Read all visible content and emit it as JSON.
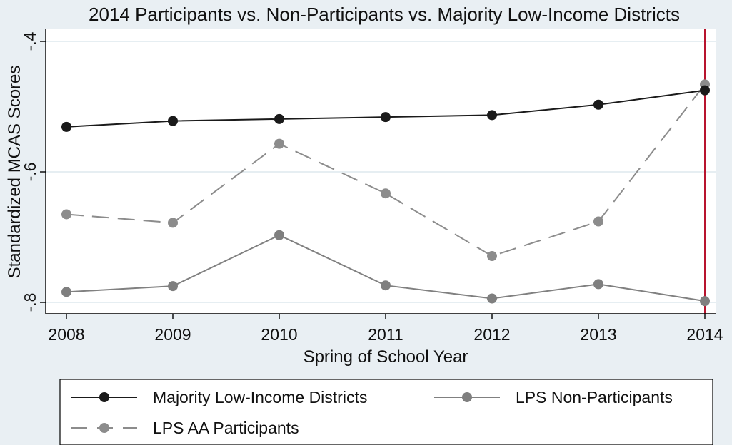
{
  "chart_data": {
    "type": "line",
    "title": "2014 Participants vs. Non-Participants vs. Majority Low-Income Districts",
    "xlabel": "Spring of School Year",
    "ylabel": "Standardized MCAS Scores",
    "x": [
      2008,
      2009,
      2010,
      2011,
      2012,
      2013,
      2014
    ],
    "x_tick_labels": [
      "2008",
      "2009",
      "2010",
      "2011",
      "2012",
      "2013",
      "2014"
    ],
    "ylim": [
      -0.8,
      -0.4
    ],
    "y_ticks": [
      -0.8,
      -0.6,
      -0.4
    ],
    "y_tick_labels": [
      "-.8",
      "-.6",
      "-.4"
    ],
    "grid": true,
    "vertical_marker": {
      "x": 2014,
      "color": "#b8142e"
    },
    "series": [
      {
        "name": "Majority Low-Income Districts",
        "values": [
          -0.531,
          -0.522,
          -0.519,
          -0.516,
          -0.513,
          -0.497,
          -0.475
        ],
        "color": "#1a1a1a",
        "marker_color": "#1a1a1a",
        "dash": "solid"
      },
      {
        "name": "LPS Non-Participants",
        "values": [
          -0.784,
          -0.775,
          -0.697,
          -0.774,
          -0.794,
          -0.772,
          -0.798
        ],
        "color": "#808080",
        "marker_color": "#7f7f7f",
        "dash": "solid"
      },
      {
        "name": "LPS AA Participants",
        "values": [
          -0.665,
          -0.678,
          -0.557,
          -0.633,
          -0.729,
          -0.676,
          -0.466
        ],
        "color": "#8c8c8c",
        "marker_color": "#8c8c8c",
        "dash": "dashed"
      }
    ],
    "legend": {
      "position": "bottom",
      "items": [
        {
          "label": "Majority Low-Income Districts",
          "series": 0
        },
        {
          "label": "LPS Non-Participants",
          "series": 1
        },
        {
          "label": "LPS AA Participants",
          "series": 2
        }
      ]
    }
  }
}
